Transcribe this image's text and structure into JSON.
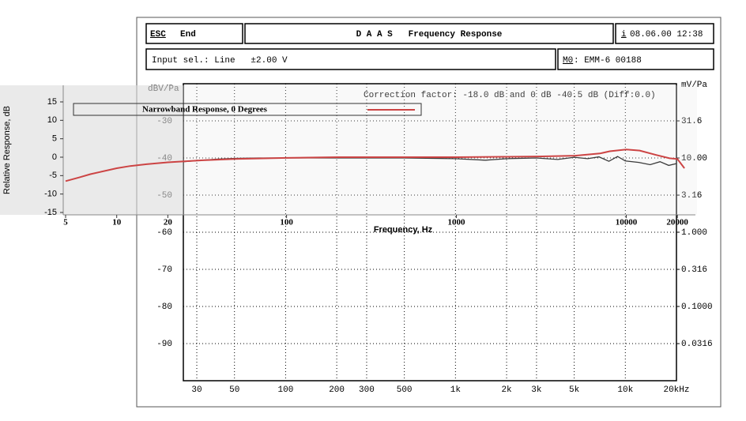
{
  "window": {
    "esc": "ESC",
    "end": "End",
    "title": "D A A S   Frequency Response",
    "date_key": "i",
    "date": "08.06.00 12:38",
    "input": "Input sel.: Line   ±2.00 V",
    "mic_key": "M0",
    "mic": ": EMM-6 00188"
  },
  "chart_data": [
    {
      "type": "line",
      "annotation": "Correction factor: -18.0 dB and 0 dB -40.5 dB (Diff:0.0)",
      "y_label": "dBV/Pa",
      "y2_label": "mV/Pa",
      "xscale": "log",
      "y2scale": "log",
      "grid": true,
      "xlim": [
        25,
        20000
      ],
      "ylim": [
        -100,
        -20
      ],
      "y2lim": [
        0.01,
        100
      ],
      "xticks": [
        30,
        50,
        100,
        200,
        300,
        500,
        {
          "value": 1000,
          "label": "1k"
        },
        {
          "value": 2000,
          "label": "2k"
        },
        {
          "value": 3000,
          "label": "3k"
        },
        {
          "value": 5000,
          "label": "5k"
        },
        {
          "value": 10000,
          "label": "10k"
        },
        {
          "value": 20000,
          "label": "20kHz"
        }
      ],
      "yticks": [
        -30,
        -40,
        -50,
        -60,
        -70,
        -80,
        -90
      ],
      "y2ticks": [
        31.6,
        {
          "value": 10,
          "label": "10.00"
        },
        3.16,
        {
          "value": 1,
          "label": "1.000"
        },
        0.316,
        {
          "value": 0.1,
          "label": "0.1000"
        },
        0.0316
      ],
      "x": [
        25,
        30,
        40,
        50,
        70,
        100,
        200,
        500,
        1000,
        1500,
        2000,
        3000,
        4000,
        5000,
        6000,
        7000,
        8000,
        9000,
        10000,
        12000,
        14000,
        16000,
        18000,
        20000
      ],
      "series": [
        {
          "color": "#000000",
          "values": [
            -41,
            -40.7,
            -40.3,
            -40.1,
            -40,
            -40,
            -40,
            -40,
            -40.2,
            -40.6,
            -40.2,
            -40,
            -40.4,
            -39.8,
            -40.2,
            -39.7,
            -40.9,
            -39.6,
            -40.8,
            -41.2,
            -41.8,
            -41,
            -42,
            -41.5
          ]
        }
      ]
    },
    {
      "type": "line",
      "y_label": "Relative Response, dB",
      "x_label": "Frequency, Hz",
      "xscale": "log",
      "grid": false,
      "xlim": [
        5,
        25000
      ],
      "ylim": [
        -15,
        15
      ],
      "xticks": [
        5,
        10,
        20,
        100,
        1000,
        10000,
        20000
      ],
      "yticks": [
        15,
        10,
        5,
        0,
        -5,
        -10,
        -15
      ],
      "x": [
        5,
        6,
        7,
        8,
        10,
        12,
        15,
        20,
        30,
        50,
        100,
        200,
        500,
        1000,
        2000,
        3000,
        5000,
        7000,
        8000,
        10000,
        12000,
        15000,
        18000,
        20000,
        22000
      ],
      "series": [
        {
          "name": "Narrowband Response, 0 Degrees",
          "color": "#cc4444",
          "values": [
            -6.5,
            -5.5,
            -4.6,
            -4,
            -3,
            -2.4,
            -1.9,
            -1.4,
            -0.9,
            -0.5,
            -0.2,
            0,
            0,
            0,
            0.1,
            0.2,
            0.4,
            1,
            1.6,
            2.1,
            1.8,
            0.6,
            -0.3,
            -0.5,
            -3
          ]
        }
      ]
    }
  ]
}
